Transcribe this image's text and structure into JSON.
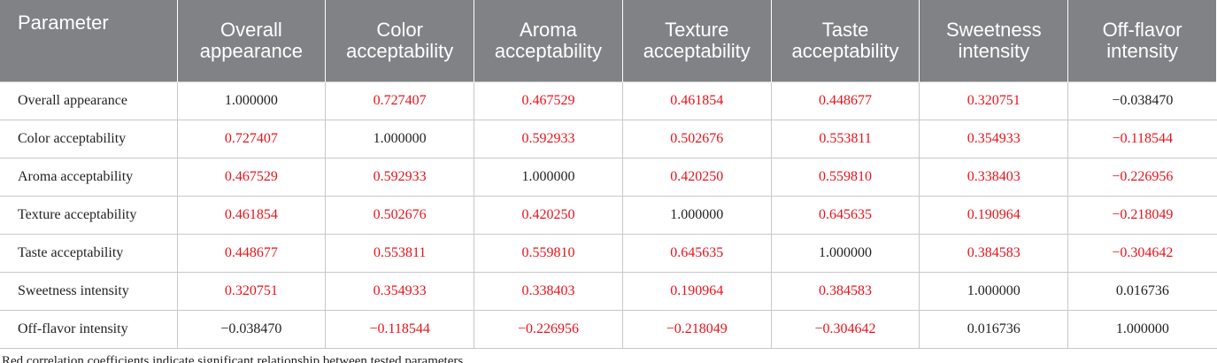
{
  "table": {
    "header": [
      "Parameter",
      "Overall appearance",
      "Color acceptability",
      "Aroma acceptability",
      "Texture acceptability",
      "Taste acceptability",
      "Sweetness intensity",
      "Off-flavor intensity"
    ],
    "rows": [
      [
        {
          "text": "Overall appearance",
          "color": "#222222"
        },
        {
          "text": "1.000000",
          "color": "#222222"
        },
        {
          "text": "0.727407",
          "color": "#e8131b"
        },
        {
          "text": "0.467529",
          "color": "#e8131b"
        },
        {
          "text": "0.461854",
          "color": "#e8131b"
        },
        {
          "text": "0.448677",
          "color": "#e8131b"
        },
        {
          "text": "0.320751",
          "color": "#e8131b"
        },
        {
          "text": "−0.038470",
          "color": "#222222"
        }
      ],
      [
        {
          "text": "Color acceptability",
          "color": "#222222"
        },
        {
          "text": "0.727407",
          "color": "#e8131b"
        },
        {
          "text": "1.000000",
          "color": "#222222"
        },
        {
          "text": "0.592933",
          "color": "#e8131b"
        },
        {
          "text": "0.502676",
          "color": "#e8131b"
        },
        {
          "text": "0.553811",
          "color": "#e8131b"
        },
        {
          "text": "0.354933",
          "color": "#e8131b"
        },
        {
          "text": "−0.118544",
          "color": "#e8131b"
        }
      ],
      [
        {
          "text": "Aroma acceptability",
          "color": "#222222"
        },
        {
          "text": "0.467529",
          "color": "#e8131b"
        },
        {
          "text": "0.592933",
          "color": "#e8131b"
        },
        {
          "text": "1.000000",
          "color": "#222222"
        },
        {
          "text": "0.420250",
          "color": "#e8131b"
        },
        {
          "text": "0.559810",
          "color": "#e8131b"
        },
        {
          "text": "0.338403",
          "color": "#e8131b"
        },
        {
          "text": "−0.226956",
          "color": "#e8131b"
        }
      ],
      [
        {
          "text": "Texture acceptability",
          "color": "#222222"
        },
        {
          "text": "0.461854",
          "color": "#e8131b"
        },
        {
          "text": "0.502676",
          "color": "#e8131b"
        },
        {
          "text": "0.420250",
          "color": "#e8131b"
        },
        {
          "text": "1.000000",
          "color": "#222222"
        },
        {
          "text": "0.645635",
          "color": "#e8131b"
        },
        {
          "text": "0.190964",
          "color": "#e8131b"
        },
        {
          "text": "−0.218049",
          "color": "#e8131b"
        }
      ],
      [
        {
          "text": "Taste acceptability",
          "color": "#222222"
        },
        {
          "text": "0.448677",
          "color": "#e8131b"
        },
        {
          "text": "0.553811",
          "color": "#e8131b"
        },
        {
          "text": "0.559810",
          "color": "#e8131b"
        },
        {
          "text": "0.645635",
          "color": "#e8131b"
        },
        {
          "text": "1.000000",
          "color": "#222222"
        },
        {
          "text": "0.384583",
          "color": "#e8131b"
        },
        {
          "text": "−0.304642",
          "color": "#e8131b"
        }
      ],
      [
        {
          "text": "Sweetness intensity",
          "color": "#222222"
        },
        {
          "text": "0.320751",
          "color": "#e8131b"
        },
        {
          "text": "0.354933",
          "color": "#e8131b"
        },
        {
          "text": "0.338403",
          "color": "#e8131b"
        },
        {
          "text": "0.190964",
          "color": "#e8131b"
        },
        {
          "text": "0.384583",
          "color": "#e8131b"
        },
        {
          "text": "1.000000",
          "color": "#222222"
        },
        {
          "text": "0.016736",
          "color": "#222222"
        }
      ],
      [
        {
          "text": "Off-flavor intensity",
          "color": "#222222"
        },
        {
          "text": "−0.038470",
          "color": "#222222"
        },
        {
          "text": "−0.118544",
          "color": "#e8131b"
        },
        {
          "text": "−0.226956",
          "color": "#e8131b"
        },
        {
          "text": "−0.218049",
          "color": "#e8131b"
        },
        {
          "text": "−0.304642",
          "color": "#e8131b"
        },
        {
          "text": "0.016736",
          "color": "#222222"
        },
        {
          "text": "1.000000",
          "color": "#222222"
        }
      ]
    ],
    "footnote": "Red correlation coefficients indicate significant relationship between tested parameters."
  }
}
